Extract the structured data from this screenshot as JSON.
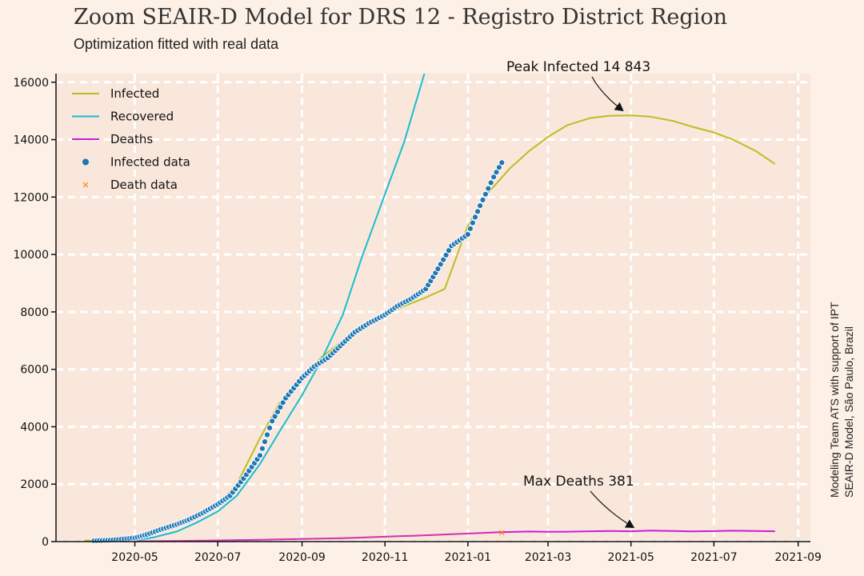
{
  "chart_data": {
    "type": "line",
    "title": "Zoom SEAIR-D Model for DRS 12 - Registro District Region",
    "subtitle": "Optimization fitted with real data",
    "side_note": [
      "Modeling Team ATS with support of IPT",
      "SEAIR-D Model, São Paulo, Brazil"
    ],
    "xlabel": "",
    "ylabel": "",
    "grid": true,
    "legend_position": "top-left",
    "xlim": [
      "2020-03-04",
      "2021-09-10"
    ],
    "ylim": [
      0,
      16300
    ],
    "x_ticks": [
      "2020-05",
      "2020-07",
      "2020-09",
      "2020-11",
      "2021-01",
      "2021-03",
      "2021-05",
      "2021-07",
      "2021-09"
    ],
    "y_ticks": [
      0,
      2000,
      4000,
      6000,
      8000,
      10000,
      12000,
      14000,
      16000
    ],
    "series": [
      {
        "name": "Infected",
        "color": "#bcbd22",
        "style": "line",
        "x": [
          "2020-03-25",
          "2020-04-15",
          "2020-05-01",
          "2020-05-15",
          "2020-06-01",
          "2020-06-15",
          "2020-07-01",
          "2020-07-15",
          "2020-08-01",
          "2020-08-15",
          "2020-09-01",
          "2020-09-15",
          "2020-10-01",
          "2020-10-15",
          "2020-11-01",
          "2020-11-15",
          "2020-12-01",
          "2020-12-15",
          "2021-01-01",
          "2021-01-15",
          "2021-02-01",
          "2021-02-15",
          "2021-03-01",
          "2021-03-15",
          "2021-04-01",
          "2021-04-15",
          "2021-05-01",
          "2021-05-15",
          "2021-06-01",
          "2021-06-15",
          "2021-07-01",
          "2021-07-15",
          "2021-08-01",
          "2021-08-15"
        ],
        "y": [
          30,
          60,
          150,
          300,
          550,
          850,
          1250,
          2000,
          3600,
          4800,
          5700,
          6400,
          7000,
          7500,
          7900,
          8200,
          8500,
          8800,
          11000,
          12100,
          13000,
          13600,
          14100,
          14500,
          14750,
          14830,
          14843,
          14800,
          14650,
          14450,
          14250,
          14000,
          13600,
          13150
        ]
      },
      {
        "name": "Recovered",
        "color": "#17becf",
        "style": "line",
        "x": [
          "2020-04-01",
          "2020-05-01",
          "2020-05-15",
          "2020-06-01",
          "2020-06-15",
          "2020-07-01",
          "2020-07-15",
          "2020-08-01",
          "2020-08-15",
          "2020-09-01",
          "2020-09-15",
          "2020-10-01",
          "2020-10-15",
          "2020-11-01",
          "2020-11-15",
          "2020-11-30"
        ],
        "y": [
          0,
          40,
          150,
          350,
          650,
          1050,
          1600,
          2700,
          3800,
          5100,
          6300,
          7900,
          9900,
          12100,
          13900,
          16300
        ]
      },
      {
        "name": "Deaths",
        "color": "#c71fd6",
        "style": "line",
        "x": [
          "2020-04-01",
          "2020-06-01",
          "2020-08-01",
          "2020-10-01",
          "2020-12-01",
          "2021-01-25",
          "2021-02-15",
          "2021-03-01",
          "2021-03-15",
          "2021-04-01",
          "2021-04-15",
          "2021-05-01",
          "2021-05-15",
          "2021-06-01",
          "2021-06-15",
          "2021-07-01",
          "2021-07-15",
          "2021-08-01",
          "2021-08-15"
        ],
        "y": [
          0,
          20,
          60,
          120,
          220,
          330,
          350,
          340,
          345,
          360,
          370,
          360,
          381,
          370,
          355,
          365,
          380,
          370,
          360
        ]
      },
      {
        "name": "Infected data",
        "color": "#1f77b4",
        "style": "scatter",
        "x": [
          "2020-04-01",
          "2020-04-15",
          "2020-05-01",
          "2020-05-10",
          "2020-05-20",
          "2020-06-01",
          "2020-06-10",
          "2020-06-20",
          "2020-07-01",
          "2020-07-10",
          "2020-07-20",
          "2020-08-01",
          "2020-08-10",
          "2020-08-20",
          "2020-09-01",
          "2020-09-10",
          "2020-09-20",
          "2020-10-01",
          "2020-10-10",
          "2020-10-20",
          "2020-11-01",
          "2020-11-10",
          "2020-11-20",
          "2020-12-01",
          "2020-12-10",
          "2020-12-20",
          "2021-01-01",
          "2021-01-10",
          "2021-01-20",
          "2021-01-26"
        ],
        "y": [
          30,
          60,
          130,
          250,
          420,
          600,
          770,
          1000,
          1300,
          1600,
          2200,
          3000,
          4200,
          5000,
          5700,
          6100,
          6400,
          6900,
          7300,
          7600,
          7900,
          8200,
          8450,
          8800,
          9500,
          10300,
          10700,
          11700,
          12700,
          13200
        ]
      },
      {
        "name": "Death data",
        "color": "#ff7f0e",
        "style": "scatter-x",
        "x": [
          "2020-05-01",
          "2020-06-01",
          "2020-07-01",
          "2020-08-01",
          "2020-09-01",
          "2020-10-01",
          "2020-11-01",
          "2020-12-01",
          "2021-01-01",
          "2021-01-26"
        ],
        "y": [
          5,
          20,
          40,
          60,
          90,
          130,
          170,
          220,
          270,
          310
        ]
      }
    ],
    "annotations": [
      {
        "text": "Peak Infected 14 843",
        "x": "2021-05-01",
        "y": 14843
      },
      {
        "text": "Max Deaths 381",
        "x": "2021-05-03",
        "y": 381
      }
    ]
  }
}
